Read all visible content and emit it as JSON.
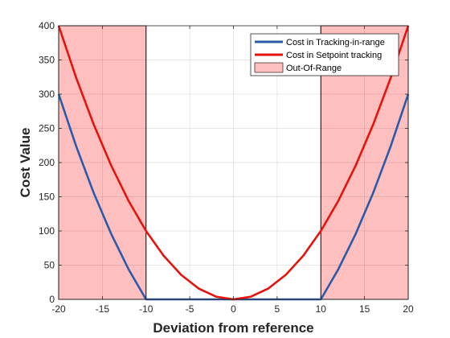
{
  "chart_data": {
    "type": "line",
    "title": "",
    "xlabel": "Deviation from reference",
    "ylabel": "Cost Value",
    "xlim": [
      -20,
      20
    ],
    "ylim": [
      0,
      400
    ],
    "xticks": [
      -20,
      -15,
      -10,
      -5,
      0,
      5,
      10,
      15,
      20
    ],
    "yticks": [
      0,
      50,
      100,
      150,
      200,
      250,
      300,
      350,
      400
    ],
    "grid": true,
    "legend_position": "top-right",
    "series": [
      {
        "name": "Cost in Tracking-in-range",
        "color": "#2a5aa8",
        "x": [
          -20,
          -18,
          -16,
          -14,
          -12,
          -10,
          -5,
          0,
          5,
          10,
          12,
          14,
          16,
          18,
          20
        ],
        "y": [
          300,
          224,
          156,
          96,
          44,
          0,
          0,
          0,
          0,
          0,
          44,
          96,
          156,
          224,
          300
        ]
      },
      {
        "name": "Cost in Setpoint tracking",
        "color": "#e8120c",
        "x": [
          -20,
          -18,
          -16,
          -14,
          -12,
          -10,
          -8,
          -6,
          -4,
          -2,
          0,
          2,
          4,
          6,
          8,
          10,
          12,
          14,
          16,
          18,
          20
        ],
        "y": [
          400,
          324,
          256,
          196,
          144,
          100,
          64,
          36,
          16,
          4,
          0,
          4,
          16,
          36,
          64,
          100,
          144,
          196,
          256,
          324,
          400
        ]
      }
    ],
    "regions": [
      {
        "name": "Out-Of-Range",
        "color": "#ffbfbf",
        "ranges": [
          [
            -20,
            -10
          ],
          [
            10,
            20
          ]
        ]
      }
    ]
  }
}
